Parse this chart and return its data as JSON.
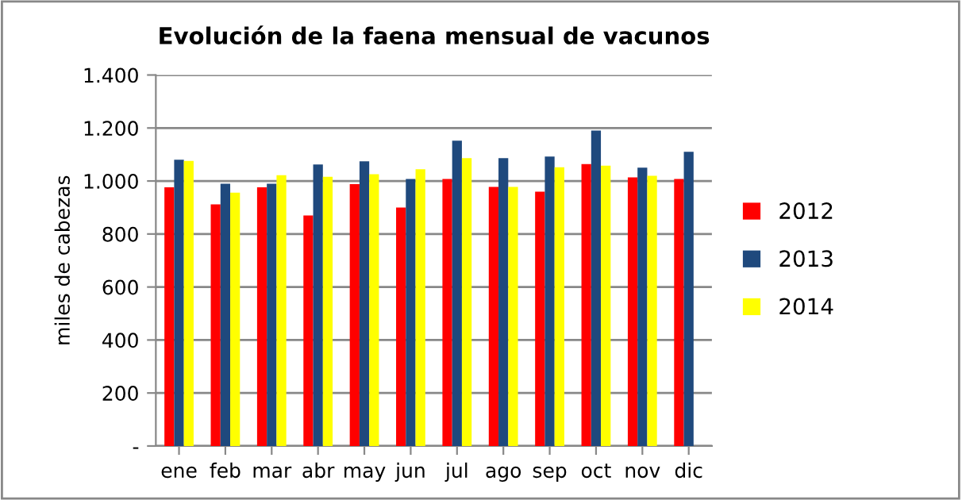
{
  "chart_data": {
    "type": "bar",
    "title": "Evolución de la faena mensual de vacunos",
    "ylabel": "miles de cabezas",
    "categories": [
      "ene",
      "feb",
      "mar",
      "abr",
      "may",
      "jun",
      "jul",
      "ago",
      "sep",
      "oct",
      "nov",
      "dic"
    ],
    "series": [
      {
        "name": "2012",
        "color": "#ff0000",
        "values": [
          976,
          912,
          976,
          870,
          988,
          900,
          1008,
          978,
          960,
          1064,
          1014,
          1008
        ]
      },
      {
        "name": "2013",
        "color": "#1f497d",
        "values": [
          1080,
          990,
          990,
          1062,
          1074,
          1008,
          1152,
          1086,
          1092,
          1190,
          1050,
          1110
        ]
      },
      {
        "name": "2014",
        "color": "#ffff00",
        "values": [
          1076,
          956,
          1022,
          1016,
          1026,
          1044,
          1086,
          978,
          1052,
          1058,
          1020,
          null
        ]
      }
    ],
    "ylim": [
      0,
      1400
    ],
    "yticks": [
      {
        "value": 0,
        "label": "-"
      },
      200,
      400,
      600,
      800,
      {
        "value": 1000,
        "label": "1.000"
      },
      {
        "value": 1200,
        "label": "1.200"
      },
      {
        "value": 1400,
        "label": "1.400"
      }
    ],
    "grid": "y",
    "legend": "right"
  }
}
